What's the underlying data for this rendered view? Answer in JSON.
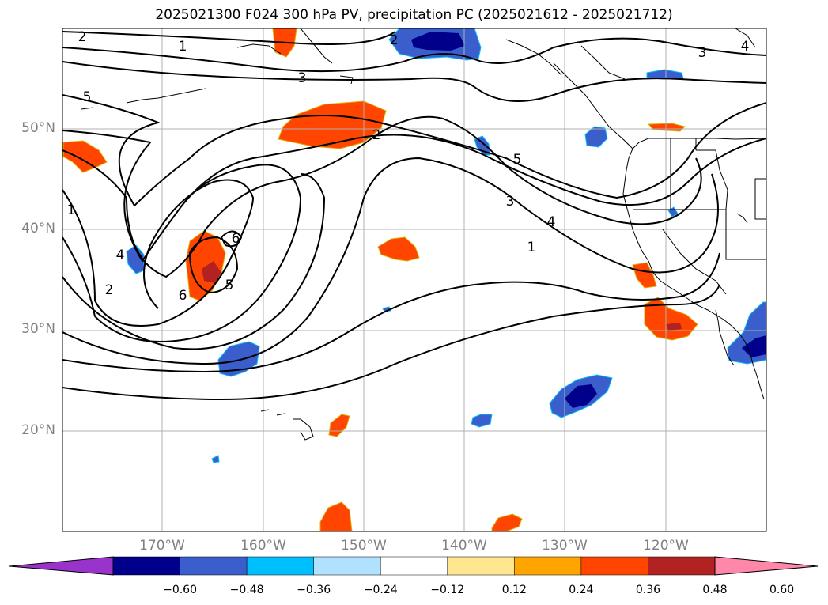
{
  "title": "2025021300 F024 300 hPa PV, precipitation PC (2025021612 - 2025021712)",
  "map": {
    "lat_labels": [
      "50°N",
      "40°N",
      "30°N",
      "20°N"
    ],
    "lon_labels": [
      "170°W",
      "160°W",
      "150°W",
      "140°W",
      "130°W",
      "120°W"
    ],
    "contour_labels": {
      "c1": "2",
      "c2": "1",
      "c3": "3",
      "c4": "3",
      "c5": "4",
      "c6": "5",
      "c7": "2",
      "c8": "5",
      "c9": "3",
      "c10": "4",
      "c11": "1",
      "c12": "1",
      "c13": "4",
      "c14": "2",
      "c15": "6",
      "c16": "5",
      "c17": "6",
      "c18": "2"
    }
  },
  "colorbar": {
    "ticks": [
      "−0.60",
      "−0.48",
      "−0.36",
      "−0.24",
      "−0.12",
      "0.12",
      "0.24",
      "0.36",
      "0.48",
      "0.60"
    ],
    "colors": [
      "#9933cc",
      "#00008b",
      "#3a5fcd",
      "#00bfff",
      "#b0e2ff",
      "#ffffff",
      "#ffe68f",
      "#ffa500",
      "#ff4500",
      "#b22222",
      "#ff88aa"
    ]
  }
}
